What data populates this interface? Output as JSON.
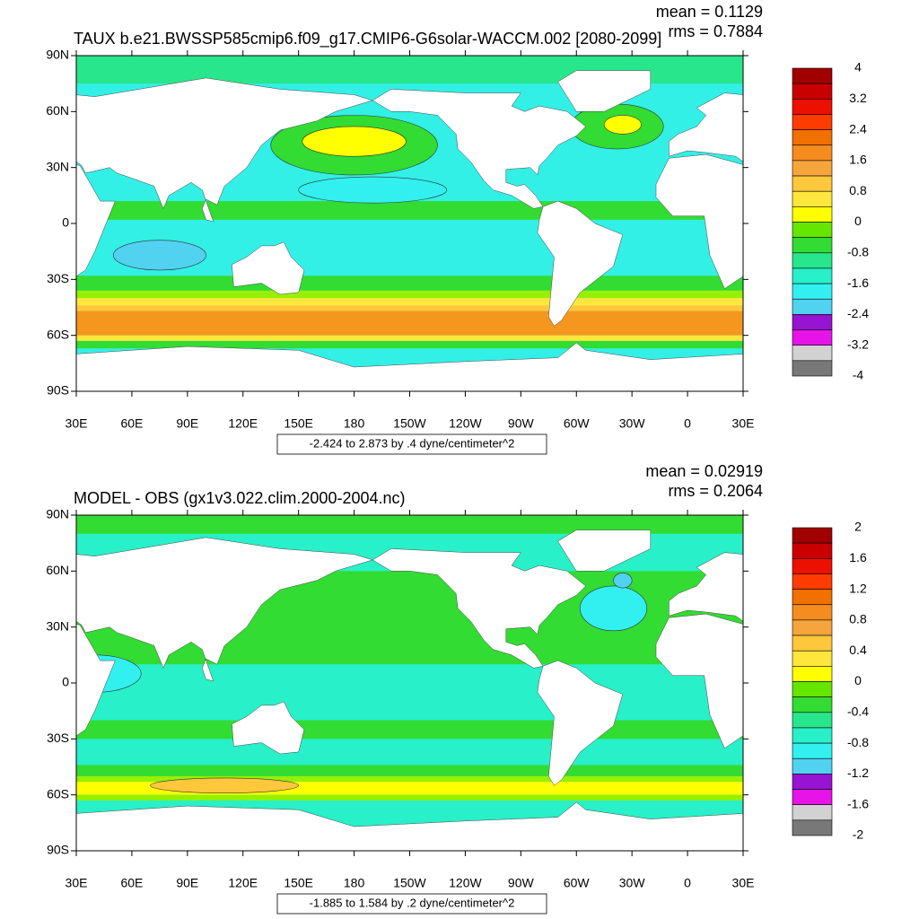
{
  "panels": [
    {
      "title": "TAUX b.e21.BWSSP585cmip6.f09_g17.CMIP6-G6solar-WACCM.002 [2080-2099]",
      "mean": "mean = 0.1129",
      "rms": "rms = 0.7884",
      "info": "-2.424 to 2.873 by .4 dyne/centimeter^2",
      "colorbar_labels": [
        "4",
        "3.2",
        "2.4",
        "1.6",
        "0.8",
        "0",
        "-0.8",
        "-1.6",
        "-2.4",
        "-3.2",
        "-4"
      ]
    },
    {
      "title": "MODEL - OBS (gx1v3.022.clim.2000-2004.nc)",
      "mean": "mean = 0.02919",
      "rms": "rms = 0.2064",
      "info": "-1.885 to 1.584 by .2 dyne/centimeter^2",
      "colorbar_labels": [
        "2",
        "1.6",
        "1.2",
        "0.8",
        "0.4",
        "0",
        "-0.4",
        "-0.8",
        "-1.2",
        "-1.6",
        "-2"
      ]
    }
  ],
  "lat_labels": [
    "90N",
    "60N",
    "30N",
    "0",
    "30S",
    "60S",
    "90S"
  ],
  "lon_labels": [
    "30E",
    "60E",
    "90E",
    "120E",
    "150E",
    "180",
    "150W",
    "120W",
    "90W",
    "60W",
    "30W",
    "0",
    "30E"
  ]
}
